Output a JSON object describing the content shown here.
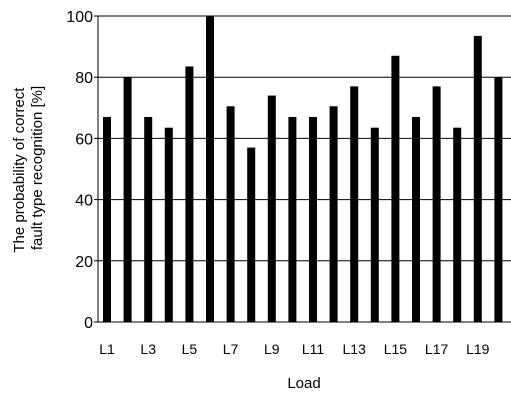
{
  "chart_data": {
    "type": "bar",
    "categories": [
      "L1",
      "L2",
      "L3",
      "L4",
      "L5",
      "L6",
      "L7",
      "L8",
      "L9",
      "L10",
      "L11",
      "L12",
      "L13",
      "L14",
      "L15",
      "L16",
      "L17",
      "L18",
      "L19",
      "L20"
    ],
    "tick_labels": [
      "L1",
      "",
      "L3",
      "",
      "L5",
      "",
      "L7",
      "",
      "L9",
      "",
      "L11",
      "",
      "L13",
      "",
      "L15",
      "",
      "L17",
      "",
      "L19",
      ""
    ],
    "values": [
      67,
      80,
      67,
      63.5,
      83.5,
      100,
      70.5,
      57,
      74,
      67,
      67,
      70.5,
      77,
      63.5,
      87,
      67,
      77,
      63.5,
      93.5,
      80
    ],
    "yticks": [
      0,
      20,
      40,
      60,
      80,
      100
    ],
    "ylim": [
      0,
      100
    ],
    "xlabel": "Load",
    "ylabel_lines": [
      "The probability of correct",
      "fault type recognition [%]"
    ],
    "grid": "horizontal",
    "bar_color": "#000000"
  }
}
